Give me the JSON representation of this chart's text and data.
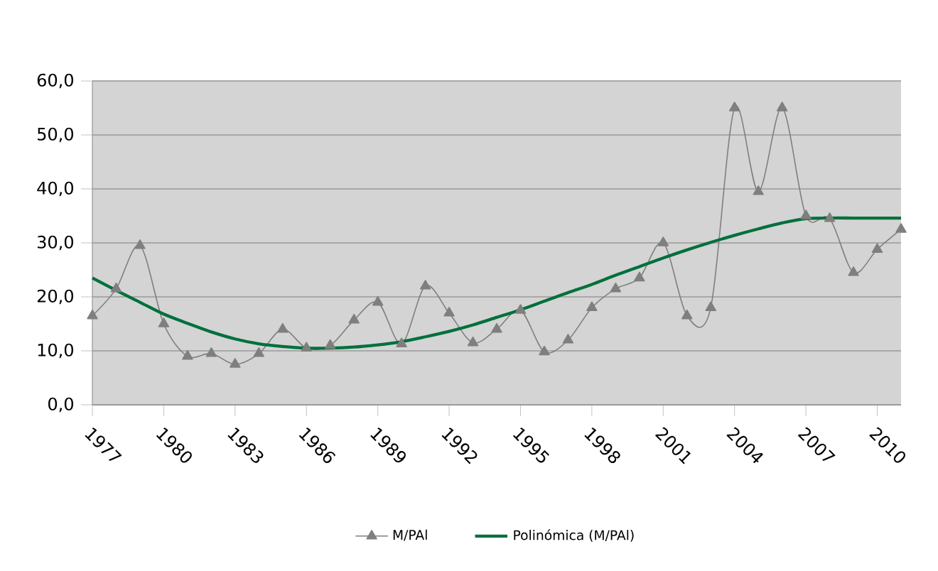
{
  "chart_data": {
    "type": "line",
    "categories": [
      "1977",
      null,
      null,
      "1980",
      null,
      null,
      "1983",
      null,
      null,
      "1986",
      null,
      null,
      "1989",
      null,
      null,
      "1992",
      null,
      null,
      "1995",
      null,
      null,
      "1998",
      null,
      null,
      "2001",
      null,
      null,
      "2004",
      null,
      null,
      "2007",
      null,
      null,
      "2010",
      null
    ],
    "series": [
      {
        "name": "M/PAl",
        "color": "#7f7f7f",
        "marker": "triangle",
        "values": [
          16.5,
          21.5,
          29.5,
          15,
          9,
          9.5,
          7.5,
          9.5,
          14,
          10.5,
          11,
          15.7,
          19,
          11.3,
          22,
          17,
          11.5,
          14,
          17.5,
          9.8,
          12,
          18,
          21.5,
          23.5,
          30,
          16.5,
          18,
          55,
          39.5,
          55,
          35,
          34.5,
          24.5,
          28.8,
          32.5
        ]
      },
      {
        "name": "Polinómica (M/PAl)",
        "color": "#00703c",
        "marker": "none",
        "values": [
          23.5,
          21.2,
          19.0,
          16.8,
          15.1,
          13.5,
          12.2,
          11.3,
          10.8,
          10.5,
          10.5,
          10.7,
          11.1,
          11.7,
          12.6,
          13.6,
          14.8,
          16.2,
          17.6,
          19.2,
          20.8,
          22.3,
          24.0,
          25.6,
          27.2,
          28.7,
          30.1,
          31.4,
          32.6,
          33.7,
          34.5,
          34.6,
          34.6,
          34.6,
          34.6
        ]
      }
    ],
    "ylim": [
      0,
      60
    ],
    "yticks": [
      {
        "value": 0,
        "label": "0,0"
      },
      {
        "value": 10,
        "label": "10,0"
      },
      {
        "value": 20,
        "label": "20,0"
      },
      {
        "value": 30,
        "label": "30,0"
      },
      {
        "value": 40,
        "label": "40,0"
      },
      {
        "value": 50,
        "label": "50,0"
      },
      {
        "value": 60,
        "label": "60,0"
      }
    ],
    "grid": "y",
    "legend": "bottom"
  }
}
